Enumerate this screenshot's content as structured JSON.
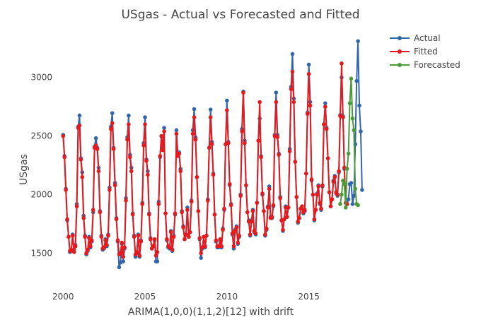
{
  "chart_data": {
    "type": "line",
    "title": "USgas - Actual vs Forecasted and Fitted",
    "xlabel": "ARIMA(1,0,0)(1,1,2)[12] with drift",
    "ylabel": "USgas",
    "xlim": [
      1999.6,
      2018.6
    ],
    "ylim": [
      1220,
      3420
    ],
    "x_ticks": [
      2000,
      2005,
      2010,
      2015
    ],
    "y_ticks": [
      1500,
      2000,
      2500,
      3000
    ],
    "grid": false,
    "legend_position": "top-right",
    "series": [
      {
        "name": "Actual",
        "color": "#3366a8",
        "start": 2000.0,
        "step": 0.08333333,
        "values": [
          2510,
          2330,
          2050,
          1780,
          1640,
          1510,
          1520,
          1660,
          1530,
          1570,
          1920,
          2580,
          2676,
          2310,
          2190,
          1820,
          1650,
          1490,
          1520,
          1640,
          1550,
          1600,
          1850,
          2410,
          2482,
          2400,
          2230,
          1860,
          1650,
          1530,
          1540,
          1620,
          1560,
          1660,
          2060,
          2580,
          2696,
          2400,
          2100,
          1800,
          1600,
          1380,
          1420,
          1580,
          1430,
          1540,
          1970,
          2490,
          2675,
          2340,
          2230,
          1840,
          1650,
          1470,
          1500,
          1660,
          1470,
          1610,
          1930,
          2440,
          2660,
          2300,
          2200,
          1840,
          1630,
          1540,
          1560,
          1610,
          1430,
          1430,
          1940,
          2320,
          2500,
          2400,
          2570,
          1840,
          1610,
          1550,
          1540,
          1690,
          1520,
          1650,
          1830,
          2550,
          2330,
          2360,
          2220,
          1860,
          1730,
          1620,
          1660,
          1890,
          1640,
          1680,
          1950,
          2550,
          2730,
          2490,
          2150,
          1860,
          1620,
          1460,
          1540,
          1640,
          1550,
          1650,
          1960,
          2400,
          2726,
          2450,
          2180,
          1830,
          1600,
          1550,
          1550,
          1610,
          1550,
          1710,
          1870,
          2430,
          2803,
          2450,
          2080,
          1920,
          1660,
          1540,
          1700,
          1730,
          1580,
          1640,
          2000,
          2560,
          2880,
          2460,
          2080,
          1850,
          1780,
          1650,
          1780,
          1870,
          1680,
          1660,
          1930,
          2460,
          2650,
          2330,
          2000,
          1860,
          1650,
          1700,
          1900,
          2070,
          1810,
          1800,
          1900,
          2510,
          2871,
          2510,
          2350,
          1980,
          1780,
          1690,
          1790,
          1900,
          1810,
          1890,
          2390,
          2920,
          3200,
          2820,
          2280,
          1980,
          1760,
          1800,
          1880,
          1900,
          1840,
          1860,
          2180,
          2700,
          3110,
          2790,
          2120,
          2000,
          1780,
          1870,
          2010,
          2080,
          1920,
          1870,
          2070,
          2600,
          2780,
          2570,
          2310,
          2020,
          1900,
          1960,
          2120,
          2160,
          2010,
          1990,
          2190,
          2680,
          3000,
          2670,
          2220,
          1930,
          1920,
          1960,
          2090,
          2100,
          1920,
          1990,
          2430,
          2970,
          3310,
          2760,
          2540,
          2040
        ]
      },
      {
        "name": "Fitted",
        "color": "#e41a1c",
        "start": 2000.0,
        "step": 0.08333333,
        "values": [
          2500,
          2320,
          2040,
          1790,
          1640,
          1520,
          1530,
          1650,
          1510,
          1560,
          1900,
          2570,
          2590,
          2300,
          2150,
          1800,
          1640,
          1500,
          1530,
          1630,
          1560,
          1610,
          1870,
          2400,
          2420,
          2390,
          2200,
          1850,
          1640,
          1540,
          1550,
          1610,
          1570,
          1650,
          2040,
          2560,
          2610,
          2390,
          2080,
          1790,
          1610,
          1490,
          1500,
          1590,
          1470,
          1550,
          1950,
          2470,
          2600,
          2320,
          2200,
          1830,
          1640,
          1490,
          1510,
          1650,
          1480,
          1600,
          1920,
          2420,
          2600,
          2290,
          2170,
          1830,
          1620,
          1540,
          1560,
          1620,
          1480,
          1510,
          1920,
          2330,
          2500,
          2380,
          2540,
          1840,
          1620,
          1560,
          1550,
          1680,
          1530,
          1640,
          1840,
          2520,
          2330,
          2350,
          2200,
          1850,
          1720,
          1620,
          1660,
          1870,
          1640,
          1680,
          1940,
          2520,
          2660,
          2470,
          2150,
          1860,
          1630,
          1500,
          1550,
          1640,
          1560,
          1650,
          1950,
          2400,
          2660,
          2430,
          2170,
          1830,
          1610,
          1560,
          1560,
          1620,
          1560,
          1700,
          1880,
          2430,
          2720,
          2440,
          2090,
          1910,
          1670,
          1560,
          1690,
          1720,
          1590,
          1650,
          1990,
          2540,
          2870,
          2440,
          2080,
          1850,
          1770,
          1660,
          1770,
          1860,
          1690,
          1670,
          1930,
          2460,
          2790,
          2320,
          2010,
          1860,
          1660,
          1710,
          1890,
          2050,
          1800,
          1810,
          1910,
          2500,
          2790,
          2490,
          2340,
          1970,
          1780,
          1700,
          1790,
          1890,
          1810,
          1890,
          2370,
          2900,
          3050,
          2790,
          2280,
          1980,
          1770,
          1800,
          1880,
          1900,
          1850,
          1870,
          2180,
          2690,
          3030,
          2760,
          2130,
          2000,
          1790,
          1870,
          2000,
          2070,
          1930,
          1880,
          2080,
          2600,
          2750,
          2560,
          2310,
          2020,
          1900,
          1960,
          2110,
          2150,
          2020,
          2000,
          2200,
          2670,
          3120,
          2660,
          2230,
          1930,
          1920
        ]
      },
      {
        "name": "Forecasted",
        "color": "#4d9a3a",
        "start": 2016.9167,
        "step": 0.08333333,
        "values": [
          1920,
          2000,
          2120,
          2090,
          1890,
          2220,
          2350,
          2780,
          2990,
          2650,
          2550,
          2050,
          1920,
          1910
        ]
      }
    ]
  }
}
